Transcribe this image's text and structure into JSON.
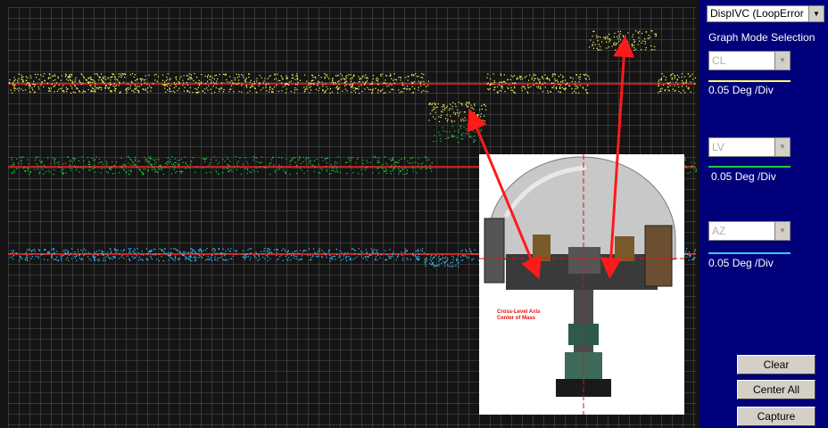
{
  "mode_select": {
    "value": "DispIVC (LoopError",
    "arrow_icon": "dropdown-arrow-icon"
  },
  "graph_mode_label": "Graph Mode Selection",
  "channels": [
    {
      "combo_value": "CL",
      "scale": "0.05 Deg /Div",
      "color": "#ffff66"
    },
    {
      "combo_value": "LV",
      "scale": "0.05 Deg /Div",
      "color": "#22cc44"
    },
    {
      "combo_value": "AZ",
      "scale": "0.05 Deg /Div",
      "color": "#33ccff"
    }
  ],
  "buttons": {
    "clear": "Clear",
    "center_all": "Center All",
    "capture": "Capture"
  },
  "photo": {
    "caption_line1": "Cross-Level Axis",
    "caption_line2": "Center of Mass"
  },
  "colors": {
    "panel_bg": "#00007a",
    "plot_bg": "#141414",
    "grid": "#6a6a6a",
    "reference_line": "#ff2020",
    "arrow": "#ff1a1a"
  }
}
